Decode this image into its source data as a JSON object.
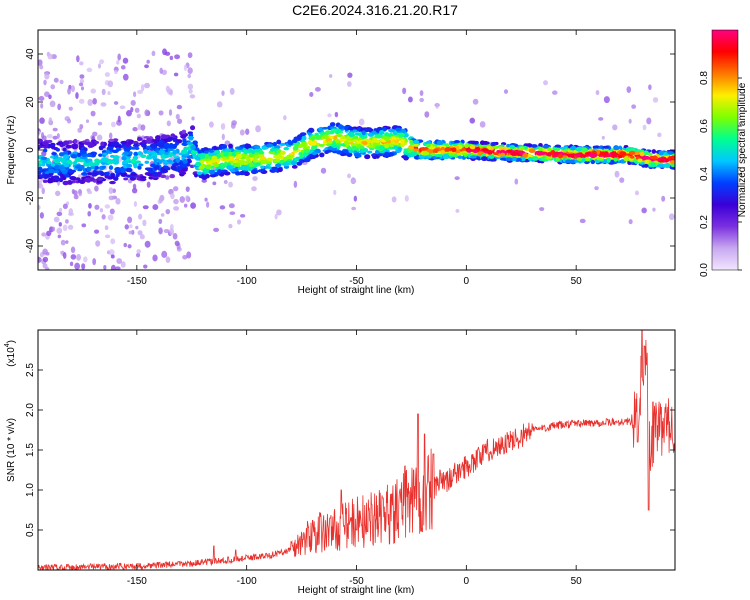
{
  "title": "C2E6.2024.316.21.20.R17",
  "chart_data": [
    {
      "type": "heatmap",
      "xlabel": "Height of straight line (km)",
      "ylabel": "Frequency (Hz)",
      "xlim": [
        -195,
        95
      ],
      "ylim": [
        -50,
        50
      ],
      "x_ticks": [
        -150,
        -100,
        -50,
        0,
        50
      ],
      "y_ticks": [
        -40,
        -20,
        0,
        20,
        40
      ],
      "colorbar": {
        "label": "Normalized spectral amplitude",
        "range": [
          0.0,
          1.0
        ],
        "ticks": [
          0.0,
          0.2,
          0.4,
          0.6,
          0.8
        ],
        "colors": [
          "#f2e6ff",
          "#c8a8f0",
          "#7b2fe0",
          "#3a00d8",
          "#0040ff",
          "#00c8ff",
          "#00ff90",
          "#7dff00",
          "#ffee00",
          "#ff7700",
          "#ff0000",
          "#ff0080"
        ]
      },
      "ridge": {
        "x": [
          -195,
          -170,
          -150,
          -130,
          -125,
          -122,
          -110,
          -100,
          -90,
          -80,
          -70,
          -60,
          -50,
          -40,
          -30,
          -25,
          -20,
          -10,
          0,
          20,
          50,
          75,
          80,
          85,
          95
        ],
        "y": [
          -5,
          -5,
          -4,
          -2,
          2,
          -6,
          -4,
          -4,
          -3,
          -2,
          3,
          5,
          3,
          3,
          4,
          1,
          0,
          0,
          0,
          -1,
          -2,
          -2,
          -3,
          -4,
          -4
        ]
      }
    },
    {
      "type": "line",
      "xlabel": "Height of straight line (km)",
      "ylabel": "SNR (10 * v/v)",
      "y_multiplier": "(x10",
      "y_multiplier_exp": "4",
      "xlim": [
        -195,
        95
      ],
      "ylim": [
        0,
        30000
      ],
      "x_ticks": [
        -150,
        -100,
        -50,
        0,
        50
      ],
      "y_ticks": [
        5000,
        10000,
        15000,
        20000,
        25000
      ],
      "y_tick_labels": [
        "0.5",
        "1.0",
        "1.5",
        "2.0",
        "2.5"
      ],
      "color": "#e8312c",
      "envelope": {
        "x": [
          -195,
          -150,
          -125,
          -110,
          -100,
          -90,
          -80,
          -70,
          -60,
          -50,
          -40,
          -30,
          -25,
          -20,
          -15,
          -10,
          0,
          10,
          20,
          30,
          40,
          50,
          60,
          70,
          75,
          78,
          80,
          82,
          84,
          86,
          88,
          90,
          95
        ],
        "y": [
          300,
          500,
          800,
          1200,
          1500,
          1800,
          2500,
          4500,
          5000,
          6000,
          6500,
          7500,
          9000,
          9000,
          10000,
          11000,
          13000,
          15000,
          16000,
          17500,
          18000,
          18300,
          18400,
          18500,
          18600,
          19000,
          25000,
          26000,
          14000,
          18000,
          17500,
          18000,
          18000
        ]
      },
      "spikes": {
        "x": [
          -115,
          -105,
          -77,
          -70,
          -62,
          -57,
          -53,
          -50,
          -45,
          -42,
          -38,
          -34,
          -28,
          -24,
          -22,
          -19,
          -17,
          -15,
          -12,
          -5,
          78,
          80,
          81,
          83,
          85
        ],
        "y": [
          3000,
          2500,
          2700,
          6200,
          6500,
          10000,
          6000,
          5000,
          4800,
          6800,
          9000,
          9500,
          13000,
          12500,
          19500,
          17000,
          11000,
          14500,
          12500,
          12000,
          16000,
          30000,
          28000,
          7500,
          21000
        ]
      }
    }
  ]
}
